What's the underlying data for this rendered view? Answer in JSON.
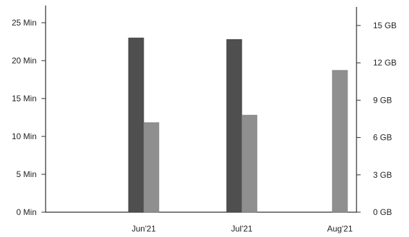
{
  "chart_data": {
    "type": "bar",
    "categories": [
      "Jun'21",
      "Jul'21",
      "Aug'21"
    ],
    "series": [
      {
        "axis": "left",
        "unit": "Min",
        "color": "#4f4f4f",
        "values": [
          23,
          22.8,
          null
        ]
      },
      {
        "axis": "right",
        "unit": "GB",
        "color": "#8f8f8f",
        "values": [
          7.2,
          7.8,
          11.4
        ]
      }
    ],
    "y_left": {
      "ylim": [
        0,
        25
      ],
      "ticks": [
        0,
        5,
        10,
        15,
        20,
        25
      ],
      "tick_labels": [
        "0 Min",
        "5 Min",
        "10 Min",
        "15 Min",
        "20 Min",
        "25 Min"
      ]
    },
    "y_right": {
      "ylim": [
        0,
        15
      ],
      "ticks": [
        0,
        3,
        6,
        9,
        12,
        15
      ],
      "tick_labels": [
        "0 GB",
        "3 GB",
        "6 GB",
        "9 GB",
        "12 GB",
        "15 GB"
      ]
    },
    "grid": false,
    "legend": "none",
    "title": "",
    "xlabel": ""
  }
}
